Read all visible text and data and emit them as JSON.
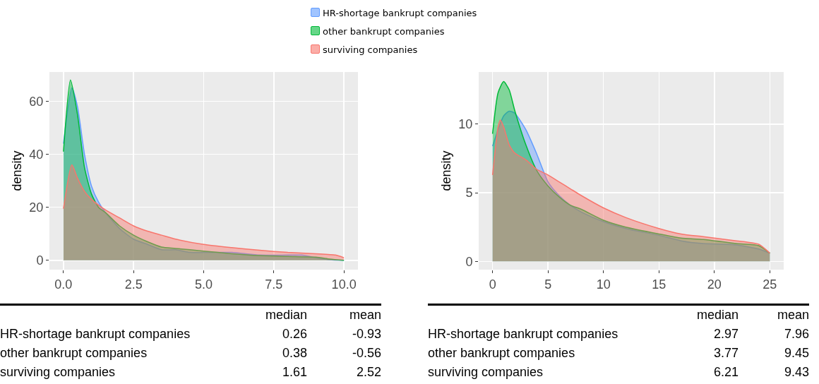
{
  "chart_data": [
    {
      "type": "area",
      "ylabel": "density",
      "legend": "top",
      "grid": true,
      "xlim": [
        -0.5,
        10.5
      ],
      "xticks": [
        {
          "value": 0,
          "label": "0.0"
        },
        2.5,
        {
          "value": 5,
          "label": "5.0"
        },
        7.5,
        {
          "value": 10,
          "label": "10.0"
        }
      ],
      "ylim": [
        -3.5,
        71
      ],
      "yticks": [
        0,
        20,
        40,
        60
      ],
      "annotations": [
        "median",
        "mean",
        "HR-shortage bankrupt companies",
        "0.26",
        "-0.93",
        "other bankrupt companies",
        "0.38",
        "-0.56",
        "surviving companies",
        "1.61",
        "2.52"
      ],
      "series": [
        {
          "name": "HR-shortage bankrupt companies",
          "color": "#619cff",
          "x": [
            0,
            0.3,
            0.5,
            0.75,
            1,
            1.25,
            1.5,
            2,
            2.5,
            3,
            3.5,
            4,
            4.5,
            5,
            6,
            7,
            8,
            8.5,
            9,
            9.5,
            10
          ],
          "values": [
            44,
            65,
            58,
            40,
            28,
            22,
            18,
            12,
            8,
            6,
            4,
            4,
            3,
            3,
            3,
            2,
            2,
            2,
            1,
            0.2,
            0
          ]
        },
        {
          "name": "other bankrupt companies",
          "color": "#00ba38",
          "x": [
            0,
            0.25,
            0.5,
            0.75,
            1,
            1.25,
            1.5,
            2,
            2.5,
            3,
            3.5,
            4,
            5,
            6,
            7,
            8,
            9,
            9.5,
            10
          ],
          "values": [
            41,
            68,
            55,
            35,
            25,
            20,
            18,
            13,
            9.5,
            7,
            5,
            4.5,
            3.5,
            2.5,
            1.8,
            1.5,
            1.2,
            0.5,
            0
          ]
        },
        {
          "name": "surviving companies",
          "color": "#f8766d",
          "x": [
            0,
            0.3,
            0.5,
            0.75,
            1,
            1.5,
            2,
            2.5,
            3,
            3.5,
            4,
            5,
            6,
            7,
            8,
            9,
            9.7,
            10
          ],
          "values": [
            19.5,
            36,
            31,
            26,
            23,
            19,
            16,
            13,
            11,
            9.5,
            8,
            6,
            4.8,
            3.8,
            3,
            2.5,
            2,
            1
          ]
        }
      ]
    },
    {
      "type": "area",
      "ylabel": "density",
      "grid": true,
      "xlim": [
        -1.25,
        26.25
      ],
      "xticks": [
        0,
        5,
        10,
        15,
        20,
        25
      ],
      "ylim": [
        -0.6,
        13.8
      ],
      "yticks": [
        0,
        5,
        10
      ],
      "annotations": [
        "median",
        "mean",
        "HR-shortage bankrupt companies",
        "2.97",
        "7.96",
        "other bankrupt companies",
        "3.77",
        "9.45",
        "surviving companies",
        "6.21",
        "9.43"
      ],
      "series": [
        {
          "color": "#619cff",
          "x": [
            0,
            1,
            1.5,
            2,
            3,
            4,
            5,
            6,
            7,
            8,
            10,
            12,
            15,
            17,
            19,
            22,
            24,
            25
          ],
          "values": [
            8.4,
            10.6,
            10.95,
            10.8,
            9.6,
            7.8,
            5.8,
            4.8,
            4.1,
            3.6,
            2.9,
            2.4,
            1.9,
            1.5,
            1.3,
            1.2,
            0.9,
            0.6
          ]
        },
        {
          "color": "#00ba38",
          "x": [
            0,
            0.5,
            1,
            1.5,
            2,
            3,
            4,
            5,
            6,
            7,
            8,
            10,
            12,
            15,
            17,
            19,
            22,
            24,
            25
          ],
          "values": [
            9.3,
            12.3,
            13.1,
            12.5,
            11,
            8.5,
            6.6,
            5.5,
            4.7,
            4.1,
            3.8,
            3.0,
            2.5,
            2.0,
            1.7,
            1.6,
            1.3,
            1.15,
            0.6
          ]
        },
        {
          "color": "#f8766d",
          "x": [
            0,
            0.5,
            0.7,
            1,
            1.5,
            2,
            3,
            4,
            5,
            6,
            7,
            8,
            10,
            12,
            15,
            17,
            19,
            22,
            24,
            25
          ],
          "values": [
            6.3,
            9.8,
            10.3,
            9.8,
            8.5,
            7.9,
            7.4,
            6.7,
            6.3,
            5.8,
            5.3,
            4.8,
            3.9,
            3.2,
            2.4,
            2.0,
            1.8,
            1.5,
            1.25,
            0.6
          ]
        }
      ]
    }
  ]
}
